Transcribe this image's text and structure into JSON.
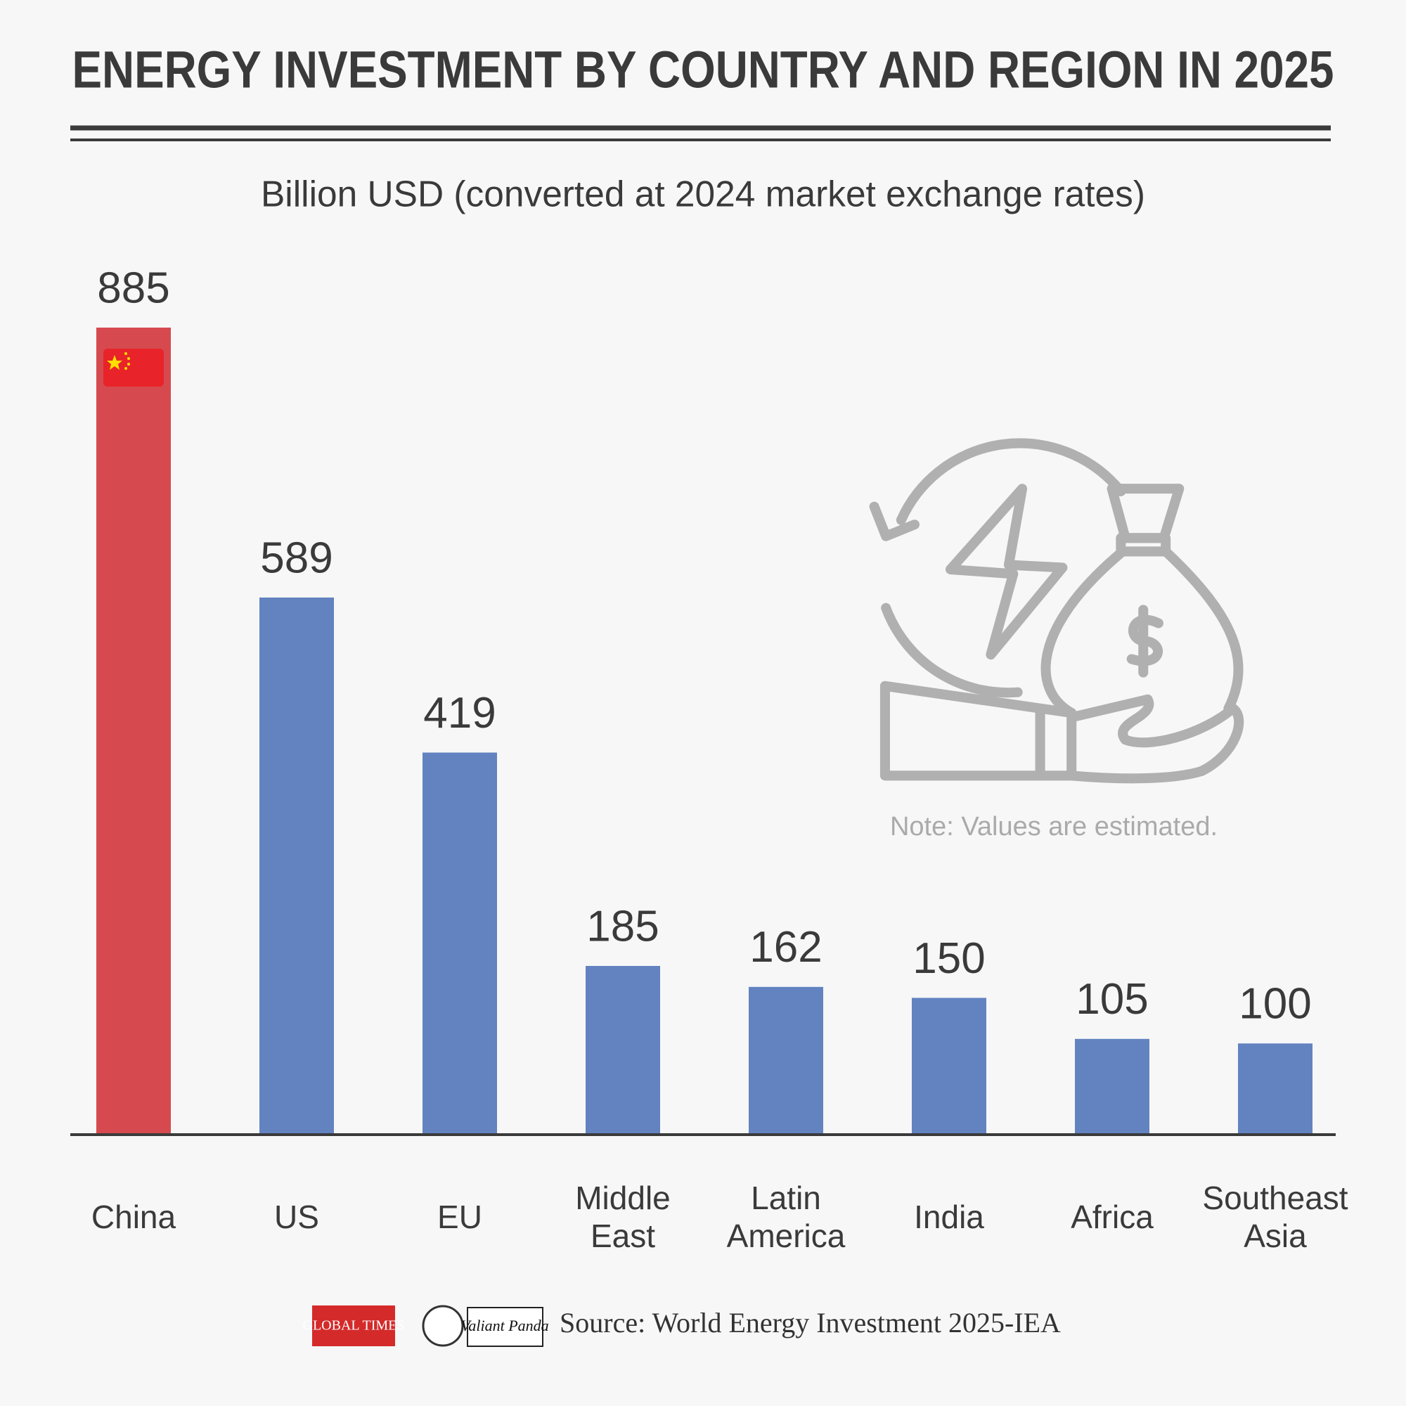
{
  "chart_data": {
    "type": "bar",
    "title": "ENERGY INVESTMENT BY COUNTRY AND REGION IN 2025",
    "subtitle": "Billion USD (converted at 2024 market exchange rates)",
    "categories": [
      "China",
      "US",
      "EU",
      "Middle East",
      "Latin America",
      "India",
      "Africa",
      "Southeast Asia"
    ],
    "values": [
      885,
      589,
      419,
      185,
      162,
      150,
      105,
      100
    ],
    "colors": [
      "#d64a4f",
      "#6283c0",
      "#6283c0",
      "#6283c0",
      "#6283c0",
      "#6283c0",
      "#6283c0",
      "#6283c0"
    ],
    "note": "Note: Values are estimated.",
    "source": "Source: World Energy Investment 2025-IEA",
    "logos": [
      "GLOBAL TIMES",
      "Valiant Panda"
    ]
  }
}
